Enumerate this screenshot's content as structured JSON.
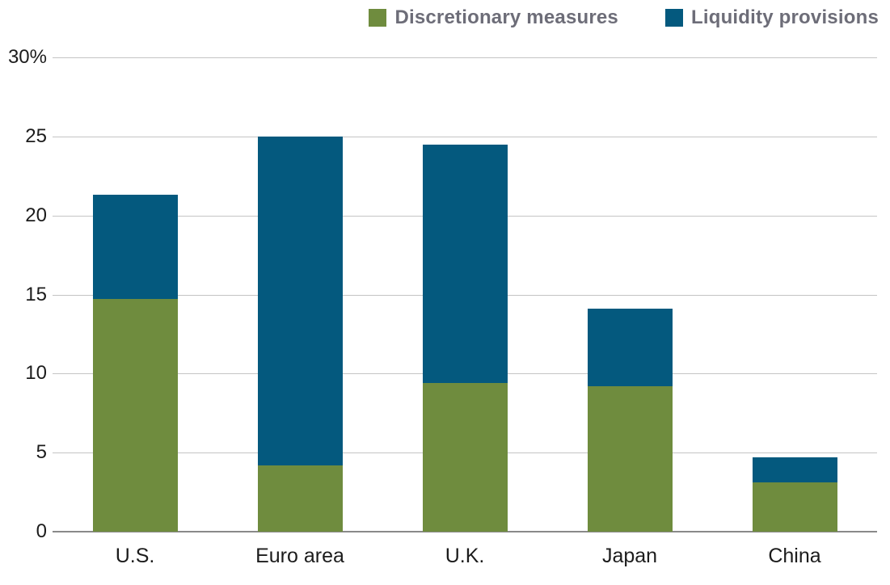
{
  "chart_data": {
    "type": "bar",
    "stacked": true,
    "title": "",
    "xlabel": "",
    "ylabel": "",
    "categories": [
      "U.S.",
      "Euro area",
      "U.K.",
      "Japan",
      "China"
    ],
    "series": [
      {
        "name": "Discretionary measures",
        "color": "#6f8c3e",
        "values": [
          14.7,
          4.2,
          9.4,
          9.2,
          3.1
        ]
      },
      {
        "name": "Liquidity provisions",
        "color": "#04597e",
        "values": [
          6.6,
          20.8,
          15.1,
          4.9,
          1.6
        ]
      }
    ],
    "totals": [
      21.3,
      25.0,
      24.5,
      14.1,
      4.7
    ],
    "ylim": [
      0,
      30
    ],
    "yticks": [
      0,
      5,
      10,
      15,
      20,
      25,
      30
    ],
    "ytick_labels": [
      "0",
      "5",
      "10",
      "15",
      "20",
      "25",
      "30%"
    ],
    "grid": true,
    "legend_position": "top"
  },
  "style": {
    "gridline_color": "#c4c4c4",
    "baseline_color": "#8a8a8a",
    "axis_text_color": "#1c1c1c",
    "legend_text_color": "#6d6d78"
  }
}
